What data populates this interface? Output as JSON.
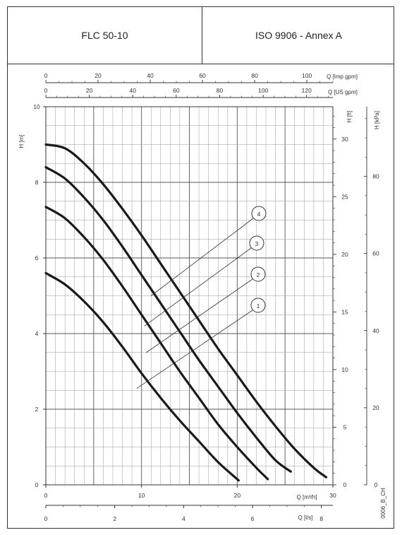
{
  "header": {
    "model": "FLC 50-10",
    "standard": "ISO 9906 - Annex A"
  },
  "chart_data": {
    "type": "line",
    "xlabel": "Q [m³/h]",
    "ylabel": "H [m]",
    "secondary_axes": {
      "top_outer_label": "Q [Imp gpm]",
      "top_inner_label": "Q [US gpm]",
      "right_inner_label": "H [ft]",
      "right_outer_label": "H [kPa]",
      "bottom_outer_label": "Q [l/s]"
    },
    "x_ticks": [
      "0",
      "10",
      "20",
      "30"
    ],
    "y_ticks": [
      "0",
      "2",
      "4",
      "6",
      "8",
      "10"
    ],
    "imp_gpm_ticks": [
      "0",
      "20",
      "40",
      "60",
      "80",
      "100"
    ],
    "us_gpm_ticks": [
      "0",
      "20",
      "40",
      "60",
      "80",
      "100",
      "120"
    ],
    "ft_ticks": [
      "0",
      "5",
      "10",
      "15",
      "20",
      "25",
      "30"
    ],
    "kpa_ticks": [
      "0",
      "20",
      "40",
      "60",
      "80"
    ],
    "ls_ticks": [
      "0",
      "2",
      "4",
      "6",
      "8"
    ],
    "xlim": [
      0,
      30
    ],
    "ylim": [
      0,
      10
    ],
    "grid": true,
    "series": [
      {
        "name": "1",
        "x": [
          0,
          2,
          4,
          6,
          8,
          10,
          12,
          14,
          16,
          18,
          20,
          20.0
        ],
        "y": [
          5.6,
          5.3,
          4.85,
          4.3,
          3.65,
          2.95,
          2.3,
          1.7,
          1.15,
          0.6,
          0.15,
          0.15
        ]
      },
      {
        "name": "2",
        "x": [
          0,
          2,
          4,
          6,
          8,
          10,
          12,
          14,
          16,
          18,
          20,
          22,
          23.2
        ],
        "y": [
          7.35,
          7.05,
          6.55,
          5.95,
          5.25,
          4.5,
          3.75,
          3.0,
          2.3,
          1.6,
          1.0,
          0.45,
          0.15
        ]
      },
      {
        "name": "3",
        "x": [
          0,
          2,
          4,
          6,
          8,
          10,
          12,
          14,
          16,
          18,
          20,
          22,
          24,
          25.6
        ],
        "y": [
          8.4,
          8.1,
          7.6,
          7.0,
          6.3,
          5.55,
          4.8,
          4.05,
          3.3,
          2.6,
          1.9,
          1.25,
          0.65,
          0.35
        ]
      },
      {
        "name": "4",
        "x": [
          0,
          2,
          4,
          6,
          8,
          10,
          12,
          14,
          16,
          18,
          20,
          22,
          24,
          26,
          28,
          29.3
        ],
        "y": [
          9.0,
          8.9,
          8.5,
          7.95,
          7.3,
          6.6,
          5.85,
          5.1,
          4.35,
          3.6,
          2.9,
          2.2,
          1.55,
          0.95,
          0.45,
          0.2
        ]
      }
    ],
    "annotations": [
      "1",
      "2",
      "3",
      "4"
    ],
    "code_label": "0006_B_CH"
  }
}
